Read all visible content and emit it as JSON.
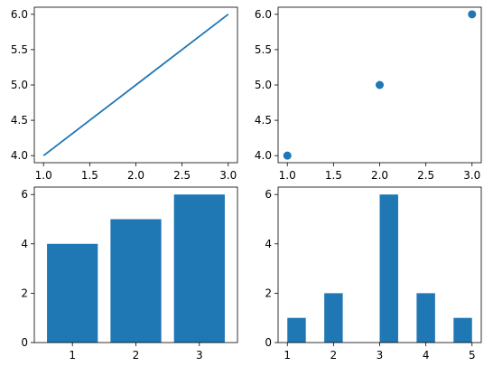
{
  "accent": "#1f77b4",
  "chart_data": [
    {
      "type": "line",
      "x": [
        1,
        2,
        3
      ],
      "y": [
        4,
        5,
        6
      ],
      "xlim": [
        0.9,
        3.1
      ],
      "ylim": [
        3.9,
        6.1
      ],
      "xticks": [
        1.0,
        1.5,
        2.0,
        2.5,
        3.0
      ],
      "xtick_labels": [
        "1.0",
        "1.5",
        "2.0",
        "2.5",
        "3.0"
      ],
      "yticks": [
        4.0,
        4.5,
        5.0,
        5.5,
        6.0
      ],
      "ytick_labels": [
        "4.0",
        "4.5",
        "5.0",
        "5.5",
        "6.0"
      ],
      "title": "",
      "xlabel": "",
      "ylabel": "",
      "grid": false,
      "color": "#1f77b4"
    },
    {
      "type": "scatter",
      "x": [
        1,
        2,
        3
      ],
      "y": [
        4,
        5,
        6
      ],
      "xlim": [
        0.9,
        3.1
      ],
      "ylim": [
        3.9,
        6.1
      ],
      "xticks": [
        1.0,
        1.5,
        2.0,
        2.5,
        3.0
      ],
      "xtick_labels": [
        "1.0",
        "1.5",
        "2.0",
        "2.5",
        "3.0"
      ],
      "yticks": [
        4.0,
        4.5,
        5.0,
        5.5,
        6.0
      ],
      "ytick_labels": [
        "4.0",
        "4.5",
        "5.0",
        "5.5",
        "6.0"
      ],
      "title": "",
      "xlabel": "",
      "ylabel": "",
      "grid": false,
      "color": "#1f77b4"
    },
    {
      "type": "bar",
      "categories": [
        1,
        2,
        3
      ],
      "values": [
        4,
        5,
        6
      ],
      "xlim": [
        0.4,
        3.6
      ],
      "ylim": [
        0,
        6.3
      ],
      "xticks": [
        1,
        2,
        3
      ],
      "xtick_labels": [
        "1",
        "2",
        "3"
      ],
      "yticks": [
        0,
        2,
        4,
        6
      ],
      "ytick_labels": [
        "0",
        "2",
        "4",
        "6"
      ],
      "title": "",
      "xlabel": "",
      "ylabel": "",
      "grid": false,
      "color": "#1f77b4"
    },
    {
      "type": "histogram",
      "bins": [
        {
          "start": 1.0,
          "end": 1.4,
          "count": 1
        },
        {
          "start": 1.8,
          "end": 2.2,
          "count": 2
        },
        {
          "start": 2.6,
          "end": 3.0,
          "count": 0
        },
        {
          "start": 3.0,
          "end": 3.4,
          "count": 6
        },
        {
          "start": 3.8,
          "end": 4.2,
          "count": 2
        },
        {
          "start": 4.6,
          "end": 5.0,
          "count": 1
        }
      ],
      "xlim": [
        0.8,
        5.2
      ],
      "ylim": [
        0,
        6.3
      ],
      "xticks": [
        1,
        2,
        3,
        4,
        5
      ],
      "xtick_labels": [
        "1",
        "2",
        "3",
        "4",
        "5"
      ],
      "yticks": [
        0,
        2,
        4,
        6
      ],
      "ytick_labels": [
        "0",
        "2",
        "4",
        "6"
      ],
      "title": "",
      "xlabel": "",
      "ylabel": "",
      "grid": false,
      "color": "#1f77b4"
    }
  ]
}
